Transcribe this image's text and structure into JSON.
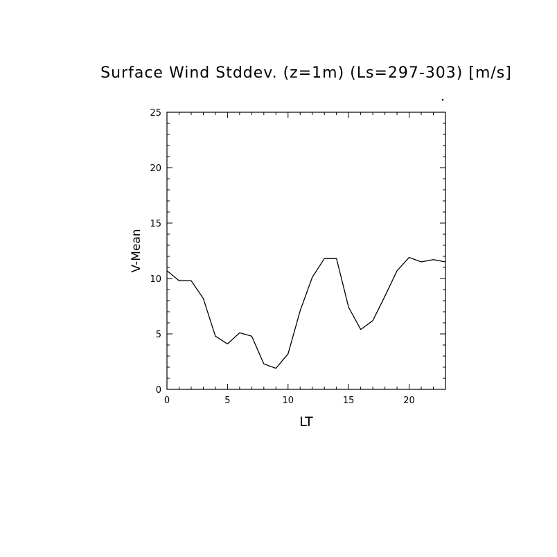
{
  "chart_data": {
    "type": "line",
    "title": "Surface Wind Stddev. (z=1m) (Ls=297-303) [m/s]",
    "xlabel": "LT",
    "ylabel": "V-Mean",
    "xlim": [
      0,
      23
    ],
    "ylim": [
      0,
      25
    ],
    "x_ticks": [
      0,
      5,
      10,
      15,
      20
    ],
    "x_tick_labels": [
      "0",
      "5",
      "10",
      "15",
      "20"
    ],
    "y_ticks": [
      0,
      5,
      10,
      15,
      20,
      25
    ],
    "y_tick_labels": [
      "0",
      "5",
      "10",
      "15",
      "20",
      "25"
    ],
    "grid": false,
    "line_color": "#000000",
    "series": [
      {
        "x": [
          0,
          1,
          2,
          3,
          4,
          5,
          6,
          7,
          8,
          9,
          10,
          11,
          12,
          13,
          14,
          15,
          16,
          17,
          18,
          19,
          20,
          21,
          22,
          23
        ],
        "values": [
          10.7,
          9.8,
          9.8,
          8.2,
          4.8,
          4.1,
          5.1,
          4.8,
          2.3,
          1.9,
          3.2,
          7.1,
          10.1,
          11.8,
          11.8,
          7.4,
          5.4,
          6.2,
          8.4,
          10.7,
          11.9,
          11.5,
          11.7,
          11.5
        ]
      }
    ]
  }
}
